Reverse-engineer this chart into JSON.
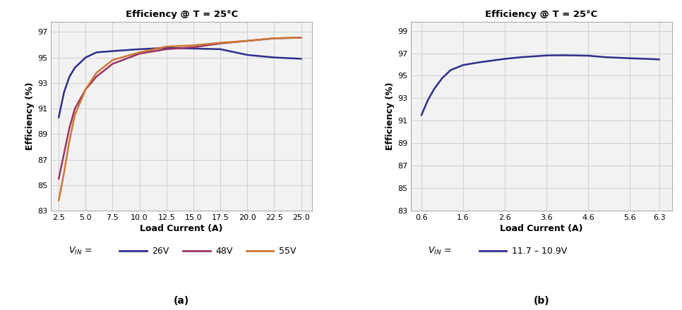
{
  "title_a": "Efficiency @ T = 25°C",
  "title_b": "Efficiency @ T = 25°C",
  "xlabel": "Load Current (A)",
  "ylabel": "Efficiency (%)",
  "label_a": "(a)",
  "label_b": "(b)",
  "chart_a": {
    "ylim": [
      83,
      97.8
    ],
    "yticks": [
      83,
      85,
      87,
      89,
      91,
      93,
      95,
      97
    ],
    "xlim": [
      1.8,
      26.0
    ],
    "xticks": [
      2.5,
      5.0,
      7.5,
      10.0,
      12.5,
      15.0,
      17.5,
      20.0,
      22.5,
      25.0
    ],
    "xtick_labels": [
      "2.5",
      "5.0",
      "7.5",
      "10.0",
      "12.5",
      "15.0",
      "17.5",
      "20.0",
      "22.5",
      "25.0"
    ],
    "series": [
      {
        "label": "26V",
        "color": "#2e2e8b",
        "x": [
          2.5,
          3.0,
          3.5,
          4.0,
          5.0,
          6.0,
          7.5,
          10.0,
          12.5,
          15.0,
          17.5,
          20.0,
          22.5,
          25.0
        ],
        "y": [
          90.3,
          92.3,
          93.5,
          94.2,
          95.0,
          95.4,
          95.5,
          95.65,
          95.75,
          95.7,
          95.65,
          95.2,
          95.0,
          94.9
        ]
      },
      {
        "label": "48V",
        "color": "#993366",
        "x": [
          2.5,
          3.0,
          3.5,
          4.0,
          5.0,
          6.0,
          7.5,
          10.0,
          12.5,
          15.0,
          17.5,
          20.0,
          22.5,
          25.0
        ],
        "y": [
          85.5,
          87.5,
          89.5,
          91.0,
          92.5,
          93.5,
          94.5,
          95.3,
          95.65,
          95.8,
          96.1,
          96.3,
          96.5,
          96.55
        ]
      },
      {
        "label": "55V",
        "color": "#cc7733",
        "x": [
          2.5,
          3.0,
          3.5,
          4.0,
          5.0,
          6.0,
          7.5,
          10.0,
          12.5,
          15.0,
          17.5,
          20.0,
          22.5,
          25.0
        ],
        "y": [
          83.8,
          86.0,
          88.5,
          90.5,
          92.5,
          93.8,
          94.8,
          95.4,
          95.85,
          95.95,
          96.15,
          96.3,
          96.5,
          96.55
        ]
      }
    ]
  },
  "chart_b": {
    "ylim": [
      83,
      99.8
    ],
    "yticks": [
      83,
      85,
      87,
      89,
      91,
      93,
      95,
      97,
      99
    ],
    "xlim": [
      0.35,
      6.6
    ],
    "xticks": [
      0.6,
      1.6,
      2.6,
      3.6,
      4.6,
      5.6,
      6.3
    ],
    "xtick_labels": [
      "0.6",
      "1.6",
      "2.6",
      "3.6",
      "4.6",
      "5.6",
      "6.3"
    ],
    "series": [
      {
        "label": "11.7 – 10.9V",
        "color": "#2e2e8b",
        "x": [
          0.6,
          0.75,
          0.9,
          1.1,
          1.3,
          1.6,
          2.0,
          2.6,
          3.0,
          3.6,
          4.0,
          4.6,
          5.0,
          5.6,
          6.0,
          6.3
        ],
        "y": [
          91.5,
          92.8,
          93.8,
          94.8,
          95.5,
          95.95,
          96.2,
          96.5,
          96.65,
          96.8,
          96.82,
          96.78,
          96.65,
          96.55,
          96.5,
          96.45
        ]
      }
    ]
  },
  "background_color": "#ffffff",
  "panel_facecolor": "#f2f2f2",
  "grid_color": "#d0d0d0"
}
